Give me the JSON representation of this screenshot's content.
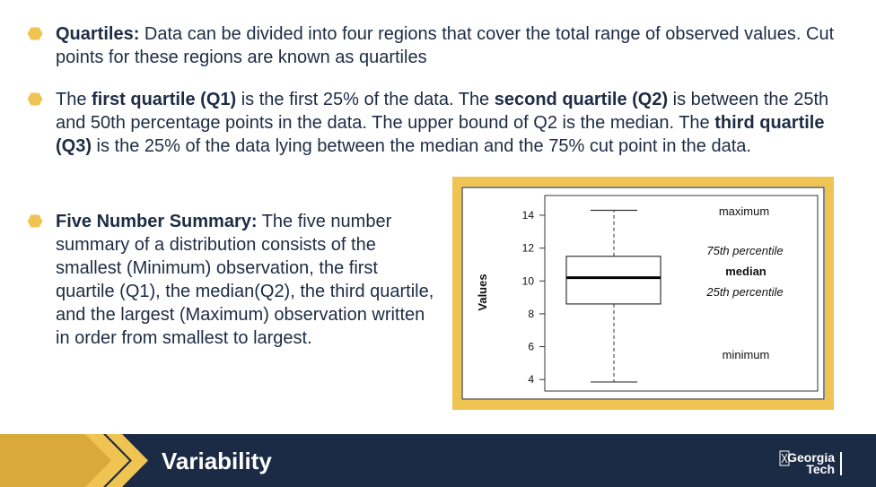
{
  "bullets": [
    {
      "segments": [
        {
          "text": "Quartiles:",
          "bold": true
        },
        {
          "text": " Data can be divided into four regions that cover the total range of observed values. Cut points for these regions are known as quartiles",
          "bold": false
        }
      ]
    },
    {
      "segments": [
        {
          "text": "The ",
          "bold": false
        },
        {
          "text": "first quartile (Q1)",
          "bold": true
        },
        {
          "text": " is the first 25% of the data. The ",
          "bold": false
        },
        {
          "text": "second quartile (Q2)",
          "bold": true
        },
        {
          "text": " is between the 25th and 50th percentage points in the data. The upper bound of Q2 is the median. The ",
          "bold": false
        },
        {
          "text": "third quartile (Q3)",
          "bold": true
        },
        {
          "text": " is the 25% of the data lying between the median and the 75% cut point in the data.",
          "bold": false
        }
      ]
    },
    {
      "segments": [
        {
          "text": "Five Number Summary:",
          "bold": true
        },
        {
          "text": " The five number summary of a distribution consists of the smallest (Minimum) observation, the first quartile (Q1), the median(Q2), the third quartile, and the largest (Maximum) observation written in order from smallest to largest.",
          "bold": false
        }
      ]
    }
  ],
  "figure": {
    "ylabel": "Values",
    "ticks": [
      "4",
      "6",
      "8",
      "10",
      "12",
      "14"
    ],
    "labels": {
      "maximum": "maximum",
      "p75": "75th percentile",
      "median": "median",
      "p25": "25th percentile",
      "minimum": "minimum"
    }
  },
  "chart_data": {
    "type": "boxplot",
    "ylabel": "Values",
    "ylim": [
      3.3,
      15.2
    ],
    "yticks": [
      4,
      6,
      8,
      10,
      12,
      14
    ],
    "box": {
      "minimum": 3.85,
      "q1": 8.6,
      "median": 10.2,
      "q3": 11.5,
      "maximum": 14.3
    }
  },
  "footer": {
    "title": "Variability",
    "logo_line1": "Georgia",
    "logo_line2": "Tech"
  },
  "colors": {
    "bullet": "#f0c452",
    "text": "#1d2c44",
    "footer_bg": "#1b2a45",
    "chevron": "#f0c452",
    "figure_frame": "#f0c452"
  }
}
